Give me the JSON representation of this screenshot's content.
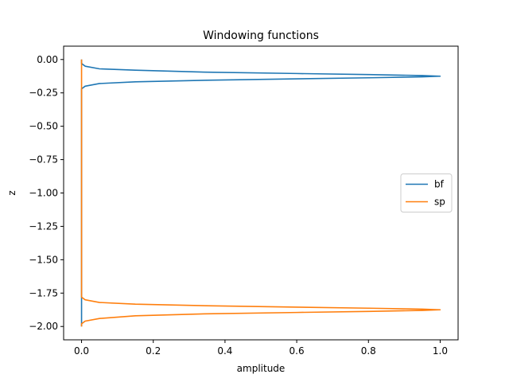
{
  "chart_data": {
    "type": "line",
    "title": "Windowing functions",
    "xlabel": "amplitude",
    "ylabel": "z",
    "xlim": [
      -0.05,
      1.05
    ],
    "ylim": [
      -2.1,
      0.1
    ],
    "xticks": [
      0.0,
      0.2,
      0.4,
      0.6,
      0.8,
      1.0
    ],
    "xtick_labels": [
      "0.0",
      "0.2",
      "0.4",
      "0.6",
      "0.8",
      "1.0"
    ],
    "yticks": [
      0.0,
      -0.25,
      -0.5,
      -0.75,
      -1.0,
      -1.25,
      -1.5,
      -1.75,
      -2.0
    ],
    "ytick_labels": [
      "0.00",
      "−0.25",
      "−0.50",
      "−0.75",
      "−1.00",
      "−1.25",
      "−1.50",
      "−1.75",
      "−2.00"
    ],
    "grid": false,
    "legend_position": "center-right",
    "series": [
      {
        "name": "bf",
        "color": "#1f77b4",
        "points": [
          [
            0.0,
            0.0
          ],
          [
            0.0,
            -0.03
          ],
          [
            0.01,
            -0.05
          ],
          [
            0.05,
            -0.07
          ],
          [
            0.15,
            -0.08
          ],
          [
            0.35,
            -0.095
          ],
          [
            0.6,
            -0.105
          ],
          [
            0.8,
            -0.113
          ],
          [
            0.95,
            -0.12
          ],
          [
            1.0,
            -0.125
          ],
          [
            0.95,
            -0.13
          ],
          [
            0.8,
            -0.137
          ],
          [
            0.6,
            -0.145
          ],
          [
            0.35,
            -0.155
          ],
          [
            0.15,
            -0.167
          ],
          [
            0.05,
            -0.18
          ],
          [
            0.01,
            -0.2
          ],
          [
            0.0,
            -0.22
          ],
          [
            0.0,
            -2.0
          ]
        ]
      },
      {
        "name": "sp",
        "color": "#ff7f0e",
        "points": [
          [
            0.0,
            0.0
          ],
          [
            0.0,
            -1.78
          ],
          [
            0.01,
            -1.8
          ],
          [
            0.05,
            -1.82
          ],
          [
            0.15,
            -1.833
          ],
          [
            0.35,
            -1.845
          ],
          [
            0.6,
            -1.855
          ],
          [
            0.8,
            -1.863
          ],
          [
            0.95,
            -1.87
          ],
          [
            1.0,
            -1.875
          ],
          [
            0.95,
            -1.88
          ],
          [
            0.8,
            -1.887
          ],
          [
            0.6,
            -1.895
          ],
          [
            0.35,
            -1.905
          ],
          [
            0.15,
            -1.92
          ],
          [
            0.05,
            -1.94
          ],
          [
            0.01,
            -1.96
          ],
          [
            0.0,
            -1.98
          ],
          [
            0.0,
            -2.0
          ]
        ]
      }
    ]
  }
}
